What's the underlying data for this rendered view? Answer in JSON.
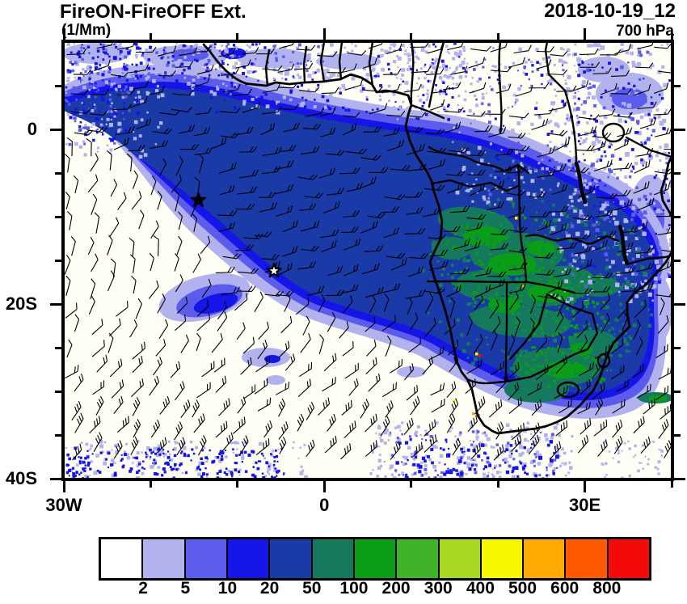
{
  "header": {
    "title": "FireON-FireOFF Ext.",
    "units_label": "(1/Mm)",
    "datetime": "2018-10-19_12",
    "level": "700 hPa"
  },
  "chart_data": {
    "type": "heatmap",
    "title": "FireON-FireOFF Ext.",
    "subtitle_units": "(1/Mm)",
    "valid_time": "2018-10-19_12",
    "pressure_level": "700 hPa",
    "description": "Aerosol extinction difference (FireON minus FireOFF, 1/Mm) at 700 hPa over the southeast Atlantic and southern Africa; biomass-burning plume shaded with wind barbs, coastlines and country borders overlaid.",
    "map_extent": {
      "lon_min": -30,
      "lon_max": 40,
      "lat_min": -40,
      "lat_max": 10
    },
    "x_axis": {
      "major_ticks": [
        {
          "value": -30,
          "label": "30W"
        },
        {
          "value": 0,
          "label": "0"
        },
        {
          "value": 30,
          "label": "30E"
        }
      ],
      "minor_step": 10
    },
    "y_axis": {
      "major_ticks": [
        {
          "value": 0,
          "label": "0"
        },
        {
          "value": -20,
          "label": "20S"
        },
        {
          "value": -40,
          "label": "40S"
        }
      ],
      "minor_step": 5
    },
    "colorbar": {
      "levels": [
        "2",
        "5",
        "10",
        "20",
        "50",
        "100",
        "200",
        "300",
        "400",
        "500",
        "600",
        "800"
      ],
      "colors": [
        "#FFFFFF",
        "#B2B2EE",
        "#5C5CEC",
        "#1515E8",
        "#1A3AA8",
        "#15795D",
        "#0A9E18",
        "#3FB32A",
        "#A8D822",
        "#F8F800",
        "#FFAA00",
        "#FF5A00",
        "#F50A0A"
      ]
    },
    "markers": [
      {
        "shape": "star",
        "lon": -14.5,
        "lat": -8.1,
        "fill": "black"
      },
      {
        "shape": "star",
        "lon": -5.8,
        "lat": -16.2,
        "fill": "open"
      }
    ],
    "wind": {
      "glyph": "barbs",
      "note": "easterly flow inside the elevated smoke plume; light variable winds south of the plume edge; strong westerlies south of 35S"
    },
    "overlays": [
      "Africa coastline",
      "country borders",
      "lakes"
    ]
  },
  "frame_color": "#000000",
  "background_color": "#FFFFFF"
}
